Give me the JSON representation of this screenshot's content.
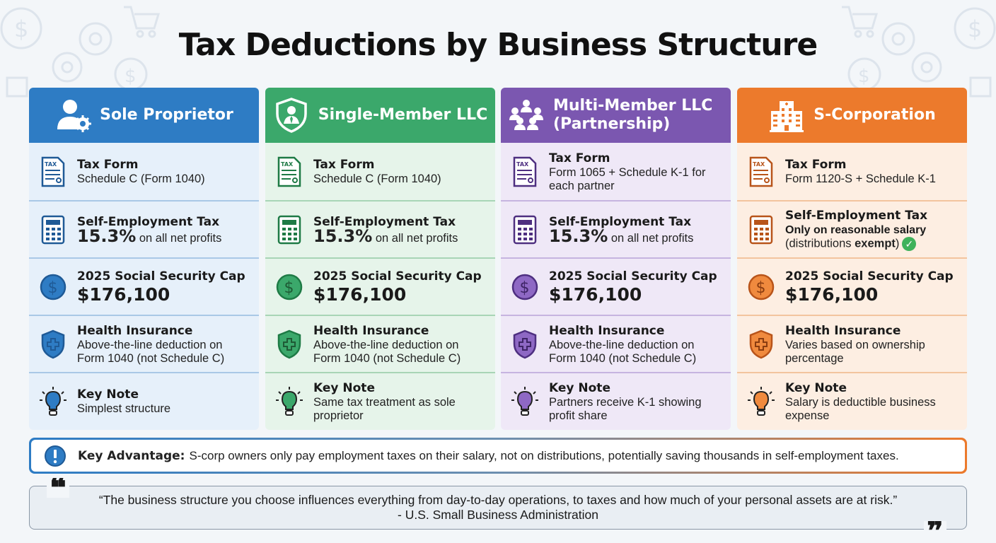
{
  "title": "Tax Deductions by Business Structure",
  "colors": {
    "sole": "#2e7cc4",
    "single": "#3ba86b",
    "multi": "#7b57b0",
    "scorp": "#ec7a2c"
  },
  "columns": [
    {
      "name": "Sole Proprietor",
      "icon": "person-gear-icon",
      "tax_form_label": "Tax Form",
      "tax_form_value": "Schedule C (Form 1040)",
      "se_label": "Self-Employment Tax",
      "se_pct": "15.3%",
      "se_rest": "on all net profits",
      "ss_label": "2025 Social Security Cap",
      "ss_value": "$176,100",
      "hi_label": "Health Insurance",
      "hi_value": "Above-the-line deduction on Form 1040 (not Schedule C)",
      "note_label": "Key Note",
      "note_value": "Simplest structure"
    },
    {
      "name": "Single-Member LLC",
      "icon": "shield-person-icon",
      "tax_form_label": "Tax Form",
      "tax_form_value": "Schedule C (Form 1040)",
      "se_label": "Self-Employment Tax",
      "se_pct": "15.3%",
      "se_rest": "on all net profits",
      "ss_label": "2025 Social Security Cap",
      "ss_value": "$176,100",
      "hi_label": "Health Insurance",
      "hi_value": "Above-the-line deduction on Form 1040 (not Schedule C)",
      "note_label": "Key Note",
      "note_value": "Same tax treatment as sole proprietor"
    },
    {
      "name": "Multi-Member LLC (Partnership)",
      "icon": "group-icon",
      "tax_form_label": "Tax Form",
      "tax_form_value": "Form 1065 + Schedule K-1 for each partner",
      "se_label": "Self-Employment Tax",
      "se_pct": "15.3%",
      "se_rest": "on all net profits",
      "ss_label": "2025 Social Security Cap",
      "ss_value": "$176,100",
      "hi_label": "Health Insurance",
      "hi_value": "Above-the-line deduction on Form 1040 (not Schedule C)",
      "note_label": "Key Note",
      "note_value": "Partners receive K-1 showing profit share"
    },
    {
      "name": "S-Corporation",
      "icon": "building-icon",
      "tax_form_label": "Tax Form",
      "tax_form_value": "Form 1120-S + Schedule K-1",
      "se_label": "Self-Employment Tax",
      "se_line1": "Only on reasonable salary",
      "se_line2_a": "(distributions ",
      "se_line2_b": "exempt",
      "se_line2_c": ")",
      "ss_label": "2025 Social Security Cap",
      "ss_value": "$176,100",
      "hi_label": "Health Insurance",
      "hi_value": "Varies based on ownership percentage",
      "note_label": "Key Note",
      "note_value": "Salary is deductible business expense"
    }
  ],
  "advantage": {
    "label": "Key Advantage:",
    "text": "S-corp owners only pay employment taxes on their salary, not on distributions, potentially saving thousands in self-employment taxes."
  },
  "quote": {
    "text": "“The business structure you choose influences everything from day-to-day operations, to taxes and how much of your personal assets are at risk.”",
    "source": "- U.S. Small Business Administration"
  }
}
